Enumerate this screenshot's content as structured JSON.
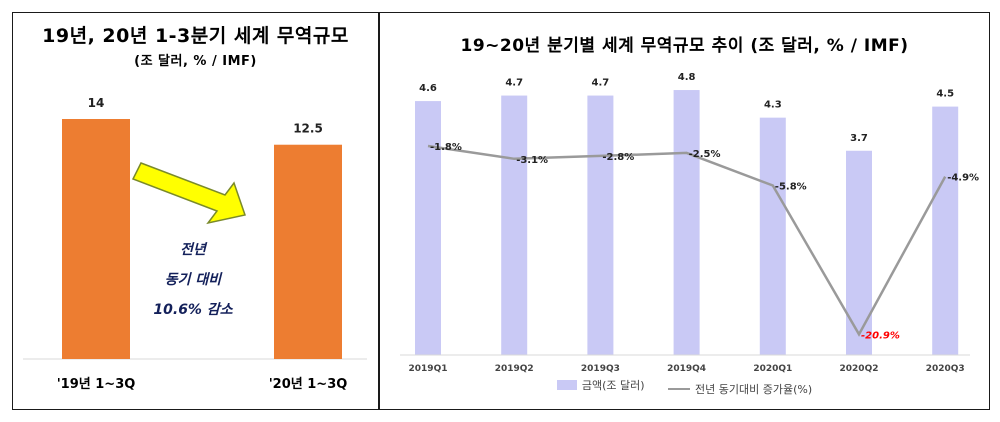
{
  "left": {
    "title": "19년, 20년 1-3분기 세계 무역규모",
    "subtitle": "(조 달러, % / IMF)",
    "callout": {
      "line1": "전년",
      "line2": "동기 대비",
      "line3": "10.6% 감소"
    }
  },
  "right": {
    "title": "19~20년 분기별 세계 무역규모 추이 (조 달러, % / IMF)",
    "legend": {
      "bar_label": "금액(조 달러)",
      "line_label": "전년 동기대비 증가율(%)"
    }
  },
  "colors": {
    "orange_bar": "#ed7d31",
    "lavender_bar": "#c9c9f5",
    "line": "#9a9a9a",
    "negative_highlight": "#ff0000",
    "arrow_fill": "#ffff00"
  },
  "chart_data": [
    {
      "type": "bar",
      "title": "19년, 20년 1-3분기 세계 무역규모",
      "subtitle": "(조 달러, % / IMF)",
      "categories": [
        "'19년 1~3Q",
        "'20년 1~3Q"
      ],
      "values": [
        14,
        12.5
      ],
      "value_labels": [
        "14",
        "12.5"
      ],
      "ylim": [
        0,
        14.7
      ]
    },
    {
      "type": "bar+line",
      "title": "19~20년 분기별 세계 무역규모 추이 (조 달러, % / IMF)",
      "categories": [
        "2019Q1",
        "2019Q2",
        "2019Q3",
        "2019Q4",
        "2020Q1",
        "2020Q2",
        "2020Q3"
      ],
      "series": [
        {
          "name": "금액(조 달러)",
          "type": "bar",
          "values": [
            4.6,
            4.7,
            4.7,
            4.8,
            4.3,
            3.7,
            4.5
          ],
          "labels": [
            "4.6",
            "4.7",
            "4.7",
            "4.8",
            "4.3",
            "3.7",
            "4.5"
          ]
        },
        {
          "name": "전년 동기대비 증가율(%)",
          "type": "line",
          "values": [
            -1.8,
            -3.1,
            -2.8,
            -2.5,
            -5.8,
            -20.9,
            -4.9
          ],
          "labels": [
            "-1.8%",
            "-3.1%",
            "-2.8%",
            "-2.5%",
            "-5.8%",
            "-20.9%",
            "-4.9%"
          ]
        }
      ],
      "bar_ylim": [
        0,
        5
      ],
      "line_ylim": [
        -23,
        5
      ],
      "legend_position": "bottom"
    }
  ]
}
